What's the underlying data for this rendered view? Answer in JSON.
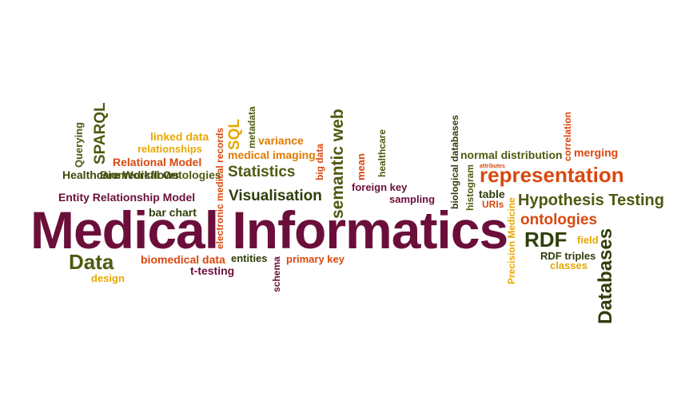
{
  "colors": {
    "maroon": "#6b0f3a",
    "olive": "#4e5a10",
    "dark_olive": "#3a4a0a",
    "orange": "#e07b00",
    "red_orange": "#d9480f",
    "gold": "#e8a800",
    "dark_green": "#2f3d0a"
  },
  "words": {
    "medical_informatics": "Medical Informatics",
    "data": "Data",
    "design": "design",
    "bar_chart": "bar chart",
    "entity_relationship_model": "Entity Relationship Model",
    "healthcare_workflows": "Healthcare Workflows",
    "biomedical_ontologies": "Biomedical Ontologies",
    "relational_model": "Relational Model",
    "relationships": "relationships",
    "linked_data": "linked data",
    "querying": "Querying",
    "sparql": "SPARQL",
    "electronic_medical_records": "electronic medical records",
    "sql": "SQL",
    "metadata": "metadata",
    "variance": "variance",
    "medical_imaging": "medical imaging",
    "statistics": "Statistics",
    "visualisation": "Visualisation",
    "big_data": "big data",
    "semantic_web": "semantic web",
    "mean": "mean",
    "healthcare": "healthcare",
    "foreign_key": "foreign key",
    "sampling": "sampling",
    "biomedical_data": "biomedical data",
    "entities": "entities",
    "schema": "schema",
    "primary_key": "primary key",
    "t_testing": "t-testing",
    "biological_databases": "biological databases",
    "histogram": "histogram",
    "attributes": "attributes",
    "normal_distribution": "normal distribution",
    "correlation": "correlation",
    "merging": "merging",
    "representation": "representation",
    "table": "table",
    "uris": "URIs",
    "hypothesis_testing": "Hypothesis Testing",
    "ontologies": "ontologies",
    "precision_medicine": "Precision Medicine",
    "rdf": "RDF",
    "field": "field",
    "rdf_triples": "RDF triples",
    "classes": "classes",
    "databases": "Databases"
  }
}
